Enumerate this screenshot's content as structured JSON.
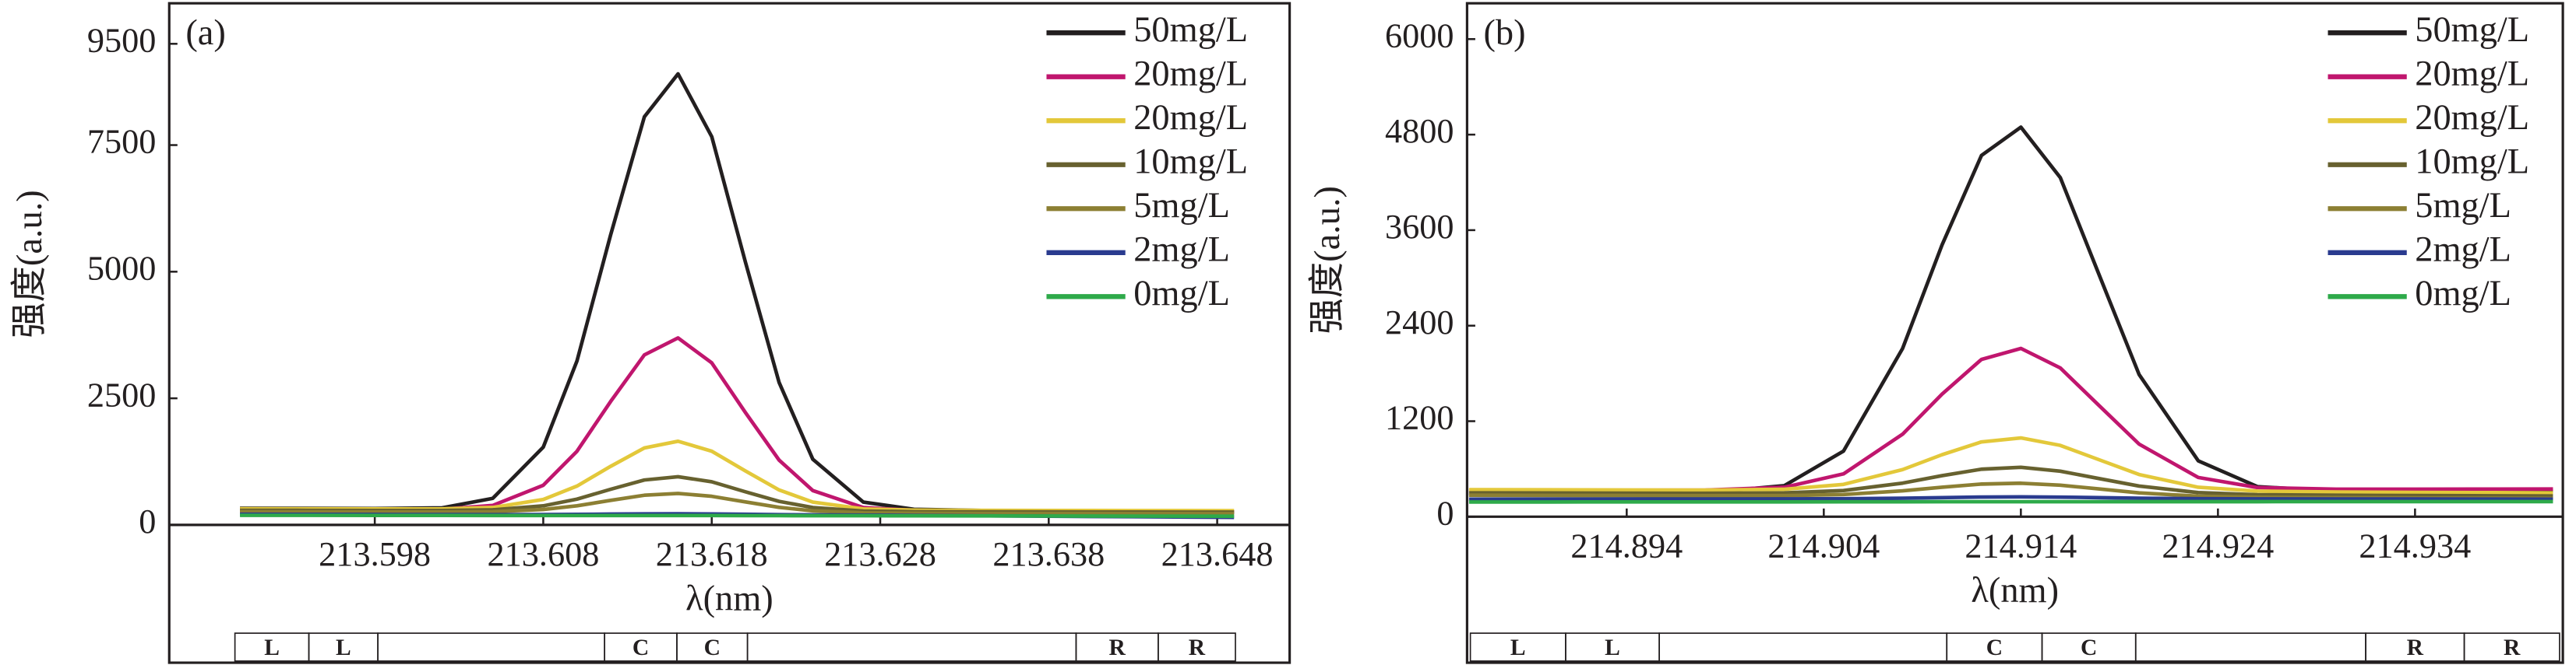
{
  "chart_data": [
    {
      "type": "line",
      "panel_label": "(a)",
      "y_label": "强度(a.u.)",
      "x_label": "λ(nm)",
      "x": [
        213.59,
        213.594,
        213.598,
        213.602,
        213.605,
        213.608,
        213.61,
        213.612,
        213.614,
        213.616,
        213.618,
        213.62,
        213.622,
        213.624,
        213.627,
        213.63,
        213.634,
        213.638,
        213.643,
        213.649
      ],
      "series": [
        {
          "name": "50mg/L",
          "color": "#231f20",
          "values": [
            330,
            327,
            324,
            337,
            524,
            1536,
            3237,
            5729,
            8058,
            8907,
            7667,
            5188,
            2811,
            1296,
            450,
            309,
            285,
            278,
            268,
            255
          ]
        },
        {
          "name": "20mg/L",
          "color": "#c0166e",
          "values": [
            310,
            308,
            306,
            311,
            384,
            783,
            1454,
            2438,
            3357,
            3692,
            3200,
            2219,
            1279,
            678,
            343,
            287,
            275,
            270,
            265,
            260
          ]
        },
        {
          "name": "20mg/L",
          "color": "#e3c83a",
          "values": [
            320,
            318,
            316,
            317,
            344,
            502,
            767,
            1157,
            1520,
            1652,
            1456,
            1065,
            690,
            451,
            316,
            293,
            288,
            286,
            284,
            282
          ]
        },
        {
          "name": "10mg/L",
          "color": "#67612f",
          "values": [
            290,
            288,
            286,
            285,
            298,
            377,
            509,
            704,
            887,
            952,
            852,
            654,
            465,
            343,
            274,
            261,
            258,
            256,
            254,
            252
          ]
        },
        {
          "name": "5mg/L",
          "color": "#8c7f33",
          "values": [
            260,
            258,
            256,
            255,
            261,
            304,
            377,
            485,
            586,
            622,
            565,
            454,
            347,
            278,
            239,
            231,
            228,
            226,
            224,
            222
          ]
        },
        {
          "name": "2mg/L",
          "color": "#2a3b8f",
          "values": [
            210,
            208,
            206,
            204,
            203,
            204,
            208,
            214,
            218,
            220,
            216,
            210,
            203,
            198,
            193,
            188,
            180,
            172,
            162,
            150
          ]
        },
        {
          "name": "0mg/L",
          "color": "#2eaa4a",
          "values": [
            190,
            189,
            188,
            187,
            186,
            186,
            186,
            186,
            186,
            186,
            185,
            184,
            183,
            182,
            181,
            180,
            178,
            176,
            174,
            172
          ]
        }
      ],
      "xlim": [
        213.5858,
        213.6523
      ],
      "ylim": [
        0,
        10300
      ],
      "xticks": [
        213.598,
        213.608,
        213.618,
        213.628,
        213.638,
        213.648
      ],
      "yticks": [
        0,
        2500,
        5000,
        7500,
        9500
      ],
      "region_labels": [
        "L",
        "L",
        "C",
        "C",
        "R",
        "R"
      ]
    },
    {
      "type": "line",
      "panel_label": "(b)",
      "y_label": "强度(a.u.)",
      "x_label": "λ(nm)",
      "x": [
        214.886,
        214.89,
        214.894,
        214.898,
        214.902,
        214.905,
        214.908,
        214.91,
        214.912,
        214.914,
        214.916,
        214.918,
        214.92,
        214.923,
        214.926,
        214.93,
        214.934,
        214.938,
        214.941
      ],
      "series": [
        {
          "name": "50mg/L",
          "color": "#231f20",
          "values": [
            290,
            292,
            294,
            301,
            390,
            824,
            2114,
            3414,
            4538,
            4894,
            4261,
            3021,
            1786,
            702,
            378,
            322,
            320,
            320,
            320
          ]
        },
        {
          "name": "20mg/L",
          "color": "#c0166e",
          "values": [
            330,
            331,
            332,
            335,
            370,
            538,
            1037,
            1540,
            1976,
            2114,
            1869,
            1389,
            912,
            493,
            367,
            346,
            346,
            347,
            348
          ]
        },
        {
          "name": "20mg/L",
          "color": "#e3c83a",
          "values": [
            340,
            338,
            336,
            335,
            345,
            406,
            592,
            779,
            940,
            990,
            896,
            713,
            530,
            370,
            321,
            310,
            306,
            303,
            300
          ]
        },
        {
          "name": "10mg/L",
          "color": "#67612f",
          "values": [
            300,
            298,
            296,
            294,
            299,
            329,
            422,
            516,
            597,
            621,
            572,
            478,
            385,
            303,
            276,
            270,
            266,
            263,
            260
          ]
        },
        {
          "name": "5mg/L",
          "color": "#8c7f33",
          "values": [
            270,
            268,
            266,
            264,
            265,
            279,
            325,
            371,
            410,
            421,
            396,
            348,
            300,
            258,
            244,
            240,
            236,
            233,
            230
          ]
        },
        {
          "name": "2mg/L",
          "color": "#2a3b8f",
          "values": [
            220,
            221,
            222,
            223,
            224,
            226,
            232,
            240,
            247,
            250,
            246,
            239,
            232,
            226,
            224,
            223,
            222,
            221,
            220
          ]
        },
        {
          "name": "0mg/L",
          "color": "#2eaa4a",
          "values": [
            185,
            185,
            186,
            186,
            186,
            187,
            187,
            188,
            188,
            188,
            188,
            188,
            189,
            189,
            189,
            190,
            190,
            190,
            190
          ]
        }
      ],
      "xlim": [
        214.8859,
        214.9415
      ],
      "ylim": [
        0,
        6450
      ],
      "xticks": [
        214.894,
        214.904,
        214.914,
        214.924,
        214.934
      ],
      "yticks": [
        0,
        1200,
        2400,
        3600,
        4800,
        6000
      ],
      "region_labels": [
        "L",
        "L",
        "C",
        "C",
        "R",
        "R"
      ]
    }
  ]
}
